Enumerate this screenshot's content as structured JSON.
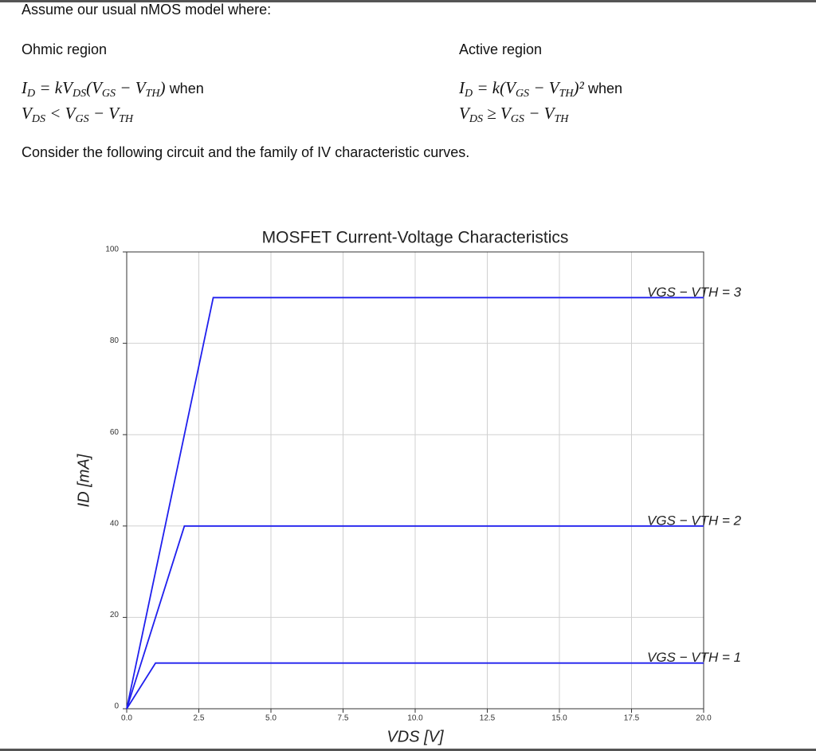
{
  "intro": "Assume our usual nMOS model where:",
  "ohmic": {
    "heading": "Ohmic region",
    "formula": [
      "I",
      "D",
      " = kV",
      "DS",
      "(V",
      "GS",
      " − V",
      "TH",
      ")"
    ],
    "when": "when",
    "condition": [
      "V",
      "DS",
      " < V",
      "GS",
      " − V",
      "TH"
    ]
  },
  "active": {
    "heading": "Active region",
    "formula": [
      "I",
      "D",
      " = k(V",
      "GS",
      " − V",
      "TH",
      ")²"
    ],
    "when": "when",
    "condition": [
      "V",
      "DS",
      " ≥ V",
      "GS",
      " − V",
      "TH"
    ]
  },
  "consider": "Consider the following circuit and the family of IV characteristic curves.",
  "chart_data": {
    "type": "line",
    "title": "MOSFET Current-Voltage Characteristics",
    "x_label": "VDS [V]",
    "y_label": "ID [mA]",
    "series": [
      {
        "name": "VGS − VTH = 1",
        "color": "#1f1fee",
        "x": [
          0,
          1,
          20
        ],
        "values": [
          0,
          10,
          10
        ]
      },
      {
        "name": "VGS − VTH = 2",
        "color": "#1f1fee",
        "x": [
          0,
          2,
          20
        ],
        "values": [
          0,
          40,
          40
        ]
      },
      {
        "name": "VGS − VTH = 3",
        "color": "#1f1fee",
        "x": [
          0,
          3,
          20
        ],
        "values": [
          0,
          90,
          90
        ]
      }
    ],
    "xlim": [
      0,
      20
    ],
    "xticks": [
      {
        "value": 0,
        "label": "0.0"
      },
      {
        "value": 2.5,
        "label": "2.5"
      },
      {
        "value": 5,
        "label": "5.0"
      },
      {
        "value": 7.5,
        "label": "7.5"
      },
      {
        "value": 10,
        "label": "10.0"
      },
      {
        "value": 12.5,
        "label": "12.5"
      },
      {
        "value": 15,
        "label": "15.0"
      },
      {
        "value": 17.5,
        "label": "17.5"
      },
      {
        "value": 20,
        "label": "20.0"
      }
    ],
    "ylim": [
      0,
      100
    ],
    "yticks": [
      0,
      20,
      40,
      60,
      80,
      100
    ],
    "grid": true
  }
}
